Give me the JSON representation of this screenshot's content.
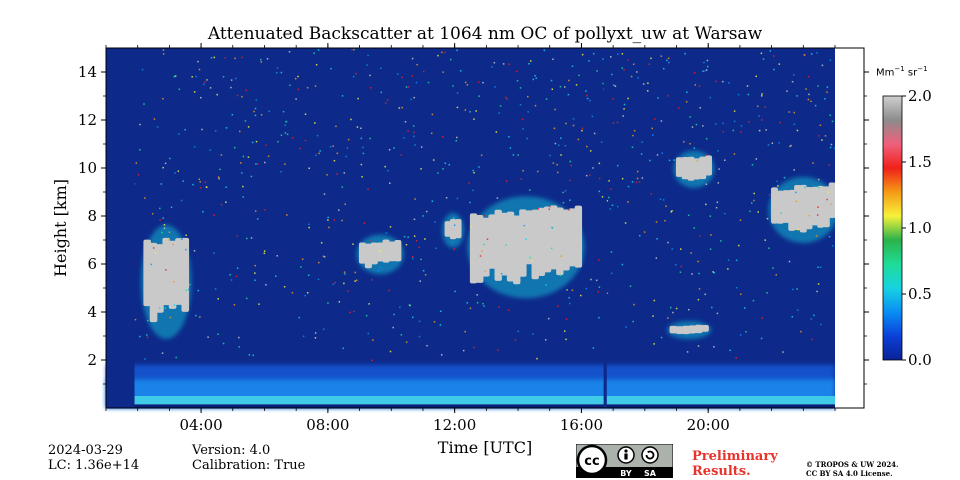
{
  "chart_data": {
    "type": "heatmap",
    "title": "Attenuated Backscatter at 1064 nm OC of pollyxt_uw at Warsaw",
    "xlabel": "Time [UTC]",
    "ylabel": "Height [km]",
    "x_range_hours": [
      1,
      24
    ],
    "ylim": [
      0,
      15
    ],
    "x_ticks": [
      {
        "value": 4,
        "label": "04:00"
      },
      {
        "value": 8,
        "label": "08:00"
      },
      {
        "value": 12,
        "label": "12:00"
      },
      {
        "value": 16,
        "label": "16:00"
      },
      {
        "value": 20,
        "label": "20:00"
      }
    ],
    "y_ticks": [
      {
        "value": 2,
        "label": "2"
      },
      {
        "value": 4,
        "label": "4"
      },
      {
        "value": 6,
        "label": "6"
      },
      {
        "value": 8,
        "label": "8"
      },
      {
        "value": 10,
        "label": "10"
      },
      {
        "value": 12,
        "label": "12"
      },
      {
        "value": 14,
        "label": "14"
      }
    ],
    "colorbar": {
      "unit_base": "Mm",
      "unit_exp1": "−1",
      "unit_mid": " sr",
      "unit_exp2": "−1",
      "range": [
        0,
        2
      ],
      "ticks": [
        {
          "value": 0.0,
          "label": "0.0"
        },
        {
          "value": 0.5,
          "label": "0.5"
        },
        {
          "value": 1.0,
          "label": "1.0"
        },
        {
          "value": 1.5,
          "label": "1.5"
        },
        {
          "value": 2.0,
          "label": "2.0"
        }
      ],
      "colors": [
        "#0a2196",
        "#0b40d8",
        "#0a8ef5",
        "#16d3e0",
        "#1fdc97",
        "#2bb24a",
        "#f6f23a",
        "#f59a16",
        "#f0201a",
        "#f0607c",
        "#8c8c8c",
        "#cfcfcf"
      ]
    },
    "background_color": "#0d2a8a",
    "features": [
      {
        "kind": "boundary_layer",
        "t_start": 1.0,
        "t_end": 24.0,
        "h_top_km": 1.8
      },
      {
        "kind": "cloud",
        "t_start": 2.2,
        "t_end": 3.6,
        "h_bottom_km": 3.0,
        "h_top_km": 7.5
      },
      {
        "kind": "cloud",
        "t_start": 9.0,
        "t_end": 10.3,
        "h_bottom_km": 5.7,
        "h_top_km": 7.1
      },
      {
        "kind": "cloud",
        "t_start": 11.7,
        "t_end": 12.2,
        "h_bottom_km": 6.8,
        "h_top_km": 8.0
      },
      {
        "kind": "cloud",
        "t_start": 12.5,
        "t_end": 16.0,
        "h_bottom_km": 4.7,
        "h_top_km": 8.7
      },
      {
        "kind": "cloud",
        "t_start": 18.8,
        "t_end": 20.0,
        "h_bottom_km": 3.0,
        "h_top_km": 3.5
      },
      {
        "kind": "cloud",
        "t_start": 19.0,
        "t_end": 20.1,
        "h_bottom_km": 9.3,
        "h_top_km": 10.6
      },
      {
        "kind": "cloud",
        "t_start": 22.0,
        "t_end": 24.0,
        "h_bottom_km": 7.0,
        "h_top_km": 9.5
      }
    ],
    "gaps": [
      {
        "t_start": 1.0,
        "t_end": 1.9,
        "kind": "no_data"
      },
      {
        "t_start": 16.7,
        "t_end": 16.8,
        "kind": "no_data"
      }
    ]
  },
  "footer": {
    "date": "2024-03-29",
    "lc": "LC: 1.36e+14",
    "version": "Version: 4.0",
    "calibration": "Calibration: True",
    "cc_label": "cc",
    "cc_by": "BY",
    "cc_sa": "SA",
    "prelim_line1": "Preliminary",
    "prelim_line2": "Results.",
    "copyright_line1": "© TROPOS & UW 2024.",
    "copyright_line2": "CC BY SA 4.0 License."
  }
}
